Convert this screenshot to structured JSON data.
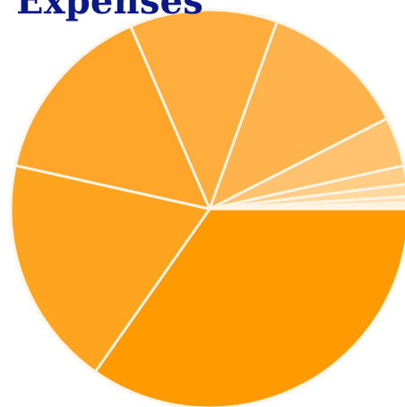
{
  "chart_data": {
    "type": "pie",
    "title": "Expenses",
    "slices": [
      {
        "value": 34.75,
        "color": "#ff9a00"
      },
      {
        "value": 18.75,
        "color": "#ffa41f"
      },
      {
        "value": 15.0,
        "color": "#ffa52a"
      },
      {
        "value": 12.0,
        "color": "#ffad3c"
      },
      {
        "value": 12.0,
        "color": "#ffb34d"
      },
      {
        "value": 4.0,
        "color": "#ffc26e"
      },
      {
        "value": 1.5,
        "color": "#ffcd85"
      },
      {
        "value": 1.0,
        "color": "#ffd89e"
      },
      {
        "value": 0.5,
        "color": "#ffe0b0"
      },
      {
        "value": 0.3,
        "color": "#ffe7c2"
      },
      {
        "value": 0.2,
        "color": "#fff0d8"
      }
    ],
    "legend": "none"
  }
}
